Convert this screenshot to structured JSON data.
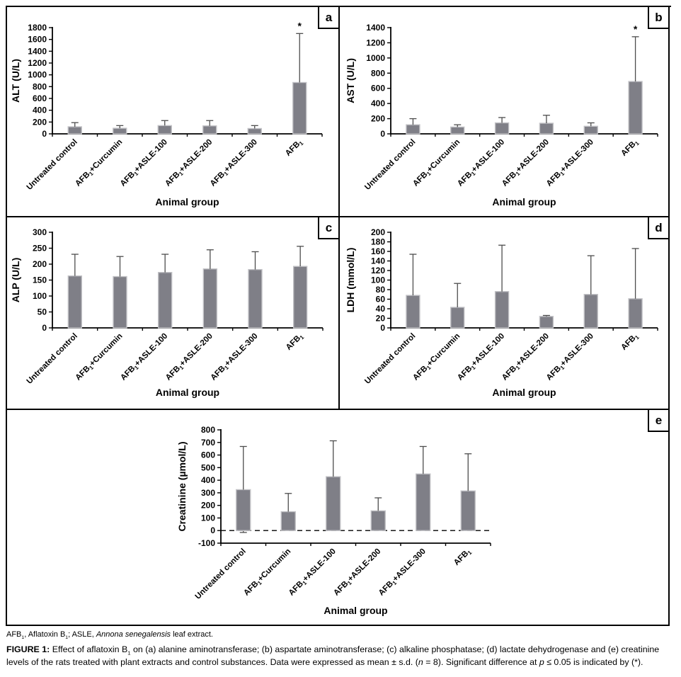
{
  "figure": {
    "footnote_segments": [
      {
        "t": "AFB"
      },
      {
        "t": "1",
        "sub": true
      },
      {
        "t": ", Aflatoxin B"
      },
      {
        "t": "1",
        "sub": true
      },
      {
        "t": "; ASLE, "
      },
      {
        "t": "Annona senegalensis",
        "i": true
      },
      {
        "t": " leaf extract."
      }
    ],
    "caption_segments": [
      {
        "t": "FIGURE 1: ",
        "b": true
      },
      {
        "t": "Effect of aflatoxin B"
      },
      {
        "t": "1",
        "sub": true
      },
      {
        "t": " on (a) alanine aminotransferase; (b) aspartate aminotransferase; (c) alkaline phosphatase; (d) lactate dehydrogenase and (e) creatinine levels of the rats treated with plant extracts and control substances. Data were expressed as mean ± s.d. ("
      },
      {
        "t": "n",
        "i": true
      },
      {
        "t": " = 8). Significant difference at "
      },
      {
        "t": "p",
        "i": true
      },
      {
        "t": " ≤ 0.05 is indicated by (*)."
      }
    ]
  },
  "colors": {
    "bar_fill": "#7f7f87",
    "bar_stroke": "#c2c2c6",
    "whisker": "#4d4d4d",
    "axis": "#000000",
    "dashed_line": "#000000"
  },
  "chart_data": [
    {
      "type": "bar",
      "panel_label": "a",
      "ylabel": "ALT (U/L)",
      "xlabel": "Animal group",
      "ymin": 0,
      "ymax": 1800,
      "ystep": 200,
      "grid": false,
      "categories": [
        "Untreated control",
        "AFB~1~+Curcumin",
        "AFB~1~+ASLE-100",
        "AFB~1~+ASLE-200",
        "AFB~1~+ASLE-300",
        "AFB~1~"
      ],
      "values": [
        120,
        95,
        140,
        135,
        90,
        870
      ],
      "error_top": [
        190,
        140,
        225,
        225,
        140,
        1700
      ],
      "sig_marker": "*",
      "sig_star_index": 5,
      "zero_dashed_line": false,
      "error_bottom_visible": null
    },
    {
      "type": "bar",
      "panel_label": "b",
      "ylabel": "AST (U/L)",
      "xlabel": "Animal group",
      "ymin": 0,
      "ymax": 1400,
      "ystep": 200,
      "grid": false,
      "categories": [
        "Untreated control",
        "AFB~1~+Curcumin",
        "AFB~1~+ASLE-100",
        "AFB~1~+ASLE-200",
        "AFB~1~+ASLE-300",
        "AFB~1~"
      ],
      "values": [
        120,
        90,
        145,
        140,
        100,
        690
      ],
      "error_top": [
        200,
        120,
        215,
        245,
        145,
        1280
      ],
      "sig_marker": "*",
      "sig_star_index": 5,
      "zero_dashed_line": false,
      "error_bottom_visible": null
    },
    {
      "type": "bar",
      "panel_label": "c",
      "ylabel": "ALP (U/L)",
      "xlabel": "Animal group",
      "ymin": 0,
      "ymax": 300,
      "ystep": 50,
      "grid": false,
      "categories": [
        "Untreated control",
        "AFB~1~+Curcumin",
        "AFB~1~+ASLE-100",
        "AFB~1~+ASLE-200",
        "AFB~1~+ASLE-300",
        "AFB~1~"
      ],
      "values": [
        163,
        161,
        174,
        185,
        183,
        193
      ],
      "error_top": [
        231,
        224,
        231,
        245,
        239,
        256
      ],
      "sig_marker": null,
      "sig_star_index": null,
      "zero_dashed_line": false,
      "error_bottom_visible": null
    },
    {
      "type": "bar",
      "panel_label": "d",
      "ylabel": "LDH (mmol/L)",
      "xlabel": "Animal group",
      "ymin": 0,
      "ymax": 200,
      "ystep": 20,
      "grid": false,
      "categories": [
        "Untreated control",
        "AFB~1~+Curcumin",
        "AFB~1~+ASLE-100",
        "AFB~1~+ASLE-200",
        "AFB~1~+ASLE-300",
        "AFB~1~"
      ],
      "values": [
        68,
        43,
        76,
        24,
        70,
        61
      ],
      "error_top": [
        154,
        93,
        173,
        26,
        151,
        166
      ],
      "sig_marker": null,
      "sig_star_index": null,
      "zero_dashed_line": false,
      "error_bottom_visible": null
    },
    {
      "type": "bar",
      "panel_label": "e",
      "ylabel": "Creatinine (µmol/L)",
      "xlabel": "Animal group",
      "ymin": -100,
      "ymax": 800,
      "ystep": 100,
      "grid": false,
      "categories": [
        "Untreated control",
        "AFB~1~+Curcumin",
        "AFB~1~+ASLE-100",
        "AFB~1~+ASLE-200",
        "AFB~1~+ASLE-300",
        "AFB~1~"
      ],
      "values": [
        325,
        150,
        428,
        157,
        450,
        315
      ],
      "error_top": [
        668,
        295,
        713,
        260,
        668,
        610
      ],
      "sig_marker": null,
      "sig_star_index": null,
      "zero_dashed_line": true,
      "error_bottom_visible": [
        -15,
        null,
        null,
        null,
        null,
        null
      ]
    }
  ]
}
